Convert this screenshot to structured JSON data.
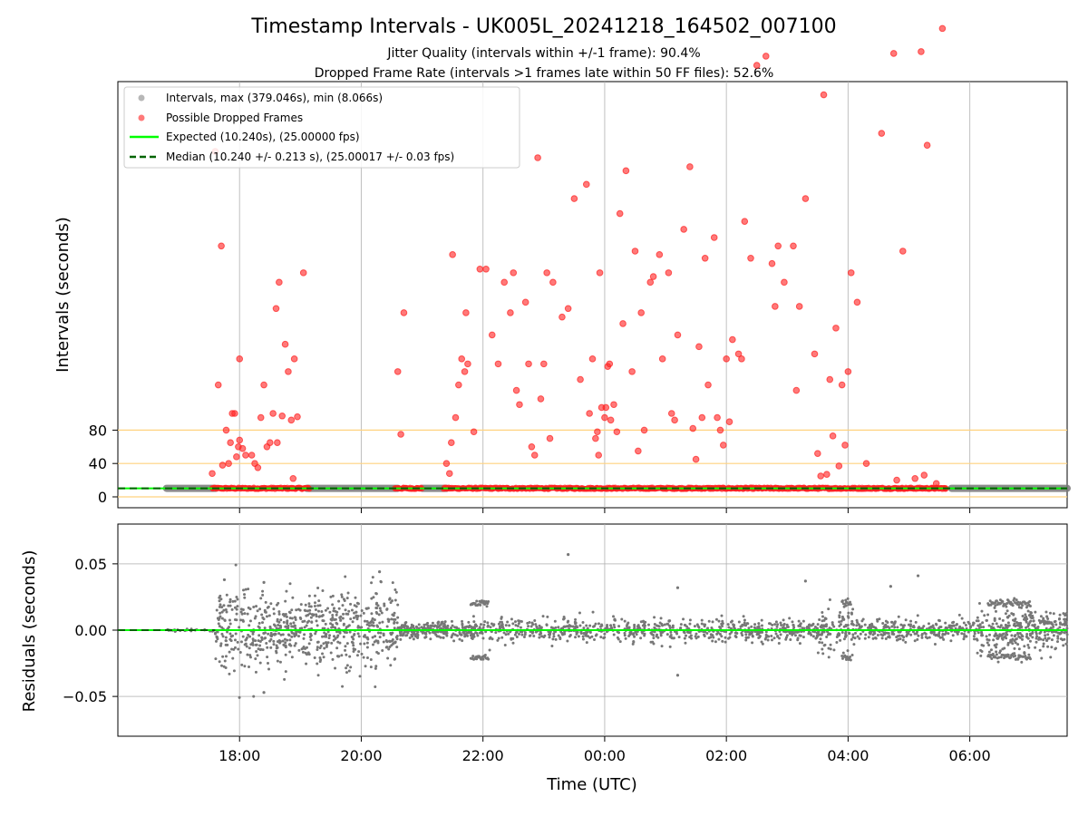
{
  "chart_data": [
    {
      "type": "scatter",
      "title": "Timestamp Intervals - UK005L_20241218_164502_007100",
      "subtitle_lines": [
        "Jitter Quality (intervals within +/-1 frame): 90.4%",
        "Dropped Frame Rate (intervals >1 frames late within 50 FF files): 52.6%"
      ],
      "ylabel": "Intervals (seconds)",
      "y_axis": "symlog",
      "yticks": [
        0,
        40,
        80
      ],
      "reference_lines": [
        0,
        40,
        80
      ],
      "reference_line_color": "#ffd27f",
      "legend_position": "top-left",
      "legend": [
        {
          "label": "Intervals, max (379.046s), min (8.066s)",
          "kind": "dot",
          "color": "#999999"
        },
        {
          "label": "Possible Dropped Frames",
          "kind": "dot",
          "color": "#ff4040"
        },
        {
          "label": "Expected (10.240s), (25.00000 fps)",
          "kind": "line",
          "color": "#00ff00"
        },
        {
          "label": "Median (10.240 +/- 0.213 s), (25.00017 +/- 0.03 fps)",
          "kind": "dash",
          "color": "#006400"
        }
      ],
      "expected_interval": 10.24,
      "median_interval": 10.24,
      "baseline_band_hours": [
        [
          16.8,
          17.6
        ],
        [
          19.1,
          20.6
        ],
        [
          21.0,
          21.4
        ],
        [
          29.7,
          31.6
        ]
      ],
      "dropped_cluster_hours": [
        17.55,
        29.6
      ],
      "dropped_frames": [
        {
          "t": 17.55,
          "v": 28
        },
        {
          "t": 17.6,
          "v": 240
        },
        {
          "t": 17.65,
          "v": 110
        },
        {
          "t": 17.7,
          "v": 175
        },
        {
          "t": 17.72,
          "v": 38
        },
        {
          "t": 17.78,
          "v": 80
        },
        {
          "t": 17.82,
          "v": 40
        },
        {
          "t": 17.85,
          "v": 65
        },
        {
          "t": 17.88,
          "v": 100
        },
        {
          "t": 17.92,
          "v": 100
        },
        {
          "t": 17.95,
          "v": 48
        },
        {
          "t": 17.98,
          "v": 60
        },
        {
          "t": 18.0,
          "v": 68
        },
        {
          "t": 18.0,
          "v": 120
        },
        {
          "t": 18.05,
          "v": 58
        },
        {
          "t": 18.1,
          "v": 50
        },
        {
          "t": 18.2,
          "v": 50
        },
        {
          "t": 18.25,
          "v": 40
        },
        {
          "t": 18.3,
          "v": 35
        },
        {
          "t": 18.35,
          "v": 95
        },
        {
          "t": 18.4,
          "v": 110
        },
        {
          "t": 18.45,
          "v": 60
        },
        {
          "t": 18.5,
          "v": 65
        },
        {
          "t": 18.55,
          "v": 100
        },
        {
          "t": 18.6,
          "v": 142
        },
        {
          "t": 18.62,
          "v": 65
        },
        {
          "t": 18.65,
          "v": 155
        },
        {
          "t": 18.7,
          "v": 97
        },
        {
          "t": 18.75,
          "v": 126
        },
        {
          "t": 18.8,
          "v": 115
        },
        {
          "t": 18.85,
          "v": 92
        },
        {
          "t": 18.88,
          "v": 22
        },
        {
          "t": 18.9,
          "v": 120
        },
        {
          "t": 18.95,
          "v": 96
        },
        {
          "t": 19.05,
          "v": 160
        },
        {
          "t": 20.6,
          "v": 115
        },
        {
          "t": 20.65,
          "v": 75
        },
        {
          "t": 20.7,
          "v": 140
        },
        {
          "t": 21.4,
          "v": 40
        },
        {
          "t": 21.45,
          "v": 28
        },
        {
          "t": 21.48,
          "v": 65
        },
        {
          "t": 21.5,
          "v": 170
        },
        {
          "t": 21.55,
          "v": 95
        },
        {
          "t": 21.6,
          "v": 110
        },
        {
          "t": 21.65,
          "v": 120
        },
        {
          "t": 21.7,
          "v": 115
        },
        {
          "t": 21.72,
          "v": 140
        },
        {
          "t": 21.75,
          "v": 118
        },
        {
          "t": 21.85,
          "v": 78
        },
        {
          "t": 21.95,
          "v": 162
        },
        {
          "t": 22.05,
          "v": 162
        },
        {
          "t": 22.15,
          "v": 130
        },
        {
          "t": 22.25,
          "v": 118
        },
        {
          "t": 22.35,
          "v": 155
        },
        {
          "t": 22.45,
          "v": 140
        },
        {
          "t": 22.5,
          "v": 160
        },
        {
          "t": 22.55,
          "v": 108
        },
        {
          "t": 22.6,
          "v": 103
        },
        {
          "t": 22.7,
          "v": 145
        },
        {
          "t": 22.75,
          "v": 118
        },
        {
          "t": 22.8,
          "v": 60
        },
        {
          "t": 22.85,
          "v": 50
        },
        {
          "t": 22.9,
          "v": 235
        },
        {
          "t": 22.95,
          "v": 105
        },
        {
          "t": 23.0,
          "v": 118
        },
        {
          "t": 23.05,
          "v": 160
        },
        {
          "t": 23.1,
          "v": 70
        },
        {
          "t": 23.15,
          "v": 155
        },
        {
          "t": 23.3,
          "v": 138
        },
        {
          "t": 23.4,
          "v": 142
        },
        {
          "t": 23.5,
          "v": 205
        },
        {
          "t": 23.6,
          "v": 112
        },
        {
          "t": 23.7,
          "v": 215
        },
        {
          "t": 23.75,
          "v": 100
        },
        {
          "t": 23.8,
          "v": 120
        },
        {
          "t": 23.85,
          "v": 70
        },
        {
          "t": 23.88,
          "v": 78
        },
        {
          "t": 23.9,
          "v": 50
        },
        {
          "t": 23.92,
          "v": 160
        },
        {
          "t": 23.95,
          "v": 102
        },
        {
          "t": 24.0,
          "v": 95
        },
        {
          "t": 24.02,
          "v": 102
        },
        {
          "t": 24.05,
          "v": 117
        },
        {
          "t": 24.08,
          "v": 118
        },
        {
          "t": 24.1,
          "v": 92
        },
        {
          "t": 24.15,
          "v": 103
        },
        {
          "t": 24.2,
          "v": 78
        },
        {
          "t": 24.25,
          "v": 195
        },
        {
          "t": 24.3,
          "v": 135
        },
        {
          "t": 24.35,
          "v": 225
        },
        {
          "t": 24.45,
          "v": 115
        },
        {
          "t": 24.5,
          "v": 172
        },
        {
          "t": 24.55,
          "v": 55
        },
        {
          "t": 24.6,
          "v": 140
        },
        {
          "t": 24.65,
          "v": 80
        },
        {
          "t": 24.75,
          "v": 155
        },
        {
          "t": 24.8,
          "v": 158
        },
        {
          "t": 24.9,
          "v": 170
        },
        {
          "t": 24.95,
          "v": 120
        },
        {
          "t": 25.05,
          "v": 160
        },
        {
          "t": 25.1,
          "v": 100
        },
        {
          "t": 25.15,
          "v": 92
        },
        {
          "t": 25.2,
          "v": 130
        },
        {
          "t": 25.3,
          "v": 185
        },
        {
          "t": 25.4,
          "v": 228
        },
        {
          "t": 25.45,
          "v": 82
        },
        {
          "t": 25.5,
          "v": 45
        },
        {
          "t": 25.55,
          "v": 125
        },
        {
          "t": 25.6,
          "v": 95
        },
        {
          "t": 25.65,
          "v": 168
        },
        {
          "t": 25.7,
          "v": 110
        },
        {
          "t": 25.8,
          "v": 180
        },
        {
          "t": 25.85,
          "v": 95
        },
        {
          "t": 25.9,
          "v": 80
        },
        {
          "t": 25.95,
          "v": 62
        },
        {
          "t": 26.0,
          "v": 120
        },
        {
          "t": 26.05,
          "v": 90
        },
        {
          "t": 26.1,
          "v": 128
        },
        {
          "t": 26.2,
          "v": 122
        },
        {
          "t": 26.25,
          "v": 120
        },
        {
          "t": 26.3,
          "v": 190
        },
        {
          "t": 26.4,
          "v": 168
        },
        {
          "t": 26.5,
          "v": 320
        },
        {
          "t": 26.65,
          "v": 330
        },
        {
          "t": 26.75,
          "v": 165
        },
        {
          "t": 26.8,
          "v": 143
        },
        {
          "t": 26.85,
          "v": 175
        },
        {
          "t": 26.95,
          "v": 155
        },
        {
          "t": 27.1,
          "v": 175
        },
        {
          "t": 27.15,
          "v": 108
        },
        {
          "t": 27.2,
          "v": 143
        },
        {
          "t": 27.3,
          "v": 205
        },
        {
          "t": 27.45,
          "v": 122
        },
        {
          "t": 27.5,
          "v": 52
        },
        {
          "t": 27.55,
          "v": 25
        },
        {
          "t": 27.6,
          "v": 290
        },
        {
          "t": 27.65,
          "v": 27
        },
        {
          "t": 27.7,
          "v": 112
        },
        {
          "t": 27.75,
          "v": 73
        },
        {
          "t": 27.8,
          "v": 133
        },
        {
          "t": 27.85,
          "v": 37
        },
        {
          "t": 27.9,
          "v": 110
        },
        {
          "t": 27.95,
          "v": 62
        },
        {
          "t": 28.0,
          "v": 115
        },
        {
          "t": 28.05,
          "v": 160
        },
        {
          "t": 28.15,
          "v": 145
        },
        {
          "t": 28.3,
          "v": 40
        },
        {
          "t": 28.55,
          "v": 255
        },
        {
          "t": 28.75,
          "v": 333
        },
        {
          "t": 28.8,
          "v": 20
        },
        {
          "t": 28.9,
          "v": 172
        },
        {
          "t": 29.1,
          "v": 22
        },
        {
          "t": 29.2,
          "v": 335
        },
        {
          "t": 29.25,
          "v": 26
        },
        {
          "t": 29.3,
          "v": 245
        },
        {
          "t": 29.45,
          "v": 16
        },
        {
          "t": 29.55,
          "v": 362
        },
        {
          "t": 29.6,
          "v": 10
        }
      ]
    },
    {
      "type": "scatter",
      "xlabel": "Time (UTC)",
      "ylabel": "Residuals (seconds)",
      "ylim": [
        -0.08,
        0.08
      ],
      "yticks": [
        0.05,
        0.0,
        -0.05
      ],
      "ytick_labels": [
        "0.05",
        "0.00",
        "−0.05"
      ],
      "xlim_hours": [
        16.0,
        31.6
      ],
      "xticks": [
        {
          "h": 18,
          "label": "18:00"
        },
        {
          "h": 20,
          "label": "20:00"
        },
        {
          "h": 22,
          "label": "22:00"
        },
        {
          "h": 24,
          "label": "00:00"
        },
        {
          "h": 26,
          "label": "02:00"
        },
        {
          "h": 28,
          "label": "04:00"
        },
        {
          "h": 30,
          "label": "06:00"
        }
      ],
      "point_color": "#777777",
      "expected_line_color": "#00ff00",
      "median_line_color": "#006400",
      "residual_segments": [
        {
          "from": 16.8,
          "to": 17.6,
          "sd": 0.0005,
          "n": 25
        },
        {
          "from": 17.6,
          "to": 18.6,
          "sd": 0.015,
          "n": 220
        },
        {
          "from": 18.6,
          "to": 20.6,
          "sd": 0.015,
          "n": 480
        },
        {
          "from": 20.6,
          "to": 21.4,
          "sd": 0.003,
          "n": 180
        },
        {
          "from": 21.4,
          "to": 23.5,
          "sd": 0.004,
          "n": 260
        },
        {
          "from": 23.5,
          "to": 27.5,
          "sd": 0.004,
          "n": 520
        },
        {
          "from": 27.5,
          "to": 28.1,
          "sd": 0.008,
          "n": 110
        },
        {
          "from": 28.1,
          "to": 30.1,
          "sd": 0.004,
          "n": 260
        },
        {
          "from": 30.1,
          "to": 31.6,
          "sd": 0.008,
          "n": 320
        }
      ],
      "residual_bands": [
        {
          "from": 21.8,
          "to": 22.1,
          "y": 0.02
        },
        {
          "from": 21.8,
          "to": 22.1,
          "y": -0.02
        },
        {
          "from": 27.9,
          "to": 28.05,
          "y": 0.02
        },
        {
          "from": 27.9,
          "to": 28.05,
          "y": -0.02
        },
        {
          "from": 30.3,
          "to": 31.0,
          "y": 0.02
        },
        {
          "from": 30.3,
          "to": 31.0,
          "y": -0.02
        }
      ],
      "residual_outliers": [
        {
          "t": 17.75,
          "v": 0.038
        },
        {
          "t": 18.4,
          "v": 0.036
        },
        {
          "t": 18.4,
          "v": -0.047
        },
        {
          "t": 20.3,
          "v": 0.044
        },
        {
          "t": 23.4,
          "v": 0.057
        },
        {
          "t": 25.2,
          "v": 0.032
        },
        {
          "t": 25.2,
          "v": -0.034
        },
        {
          "t": 27.3,
          "v": 0.037
        },
        {
          "t": 28.7,
          "v": 0.033
        },
        {
          "t": 29.15,
          "v": 0.041
        }
      ]
    }
  ]
}
